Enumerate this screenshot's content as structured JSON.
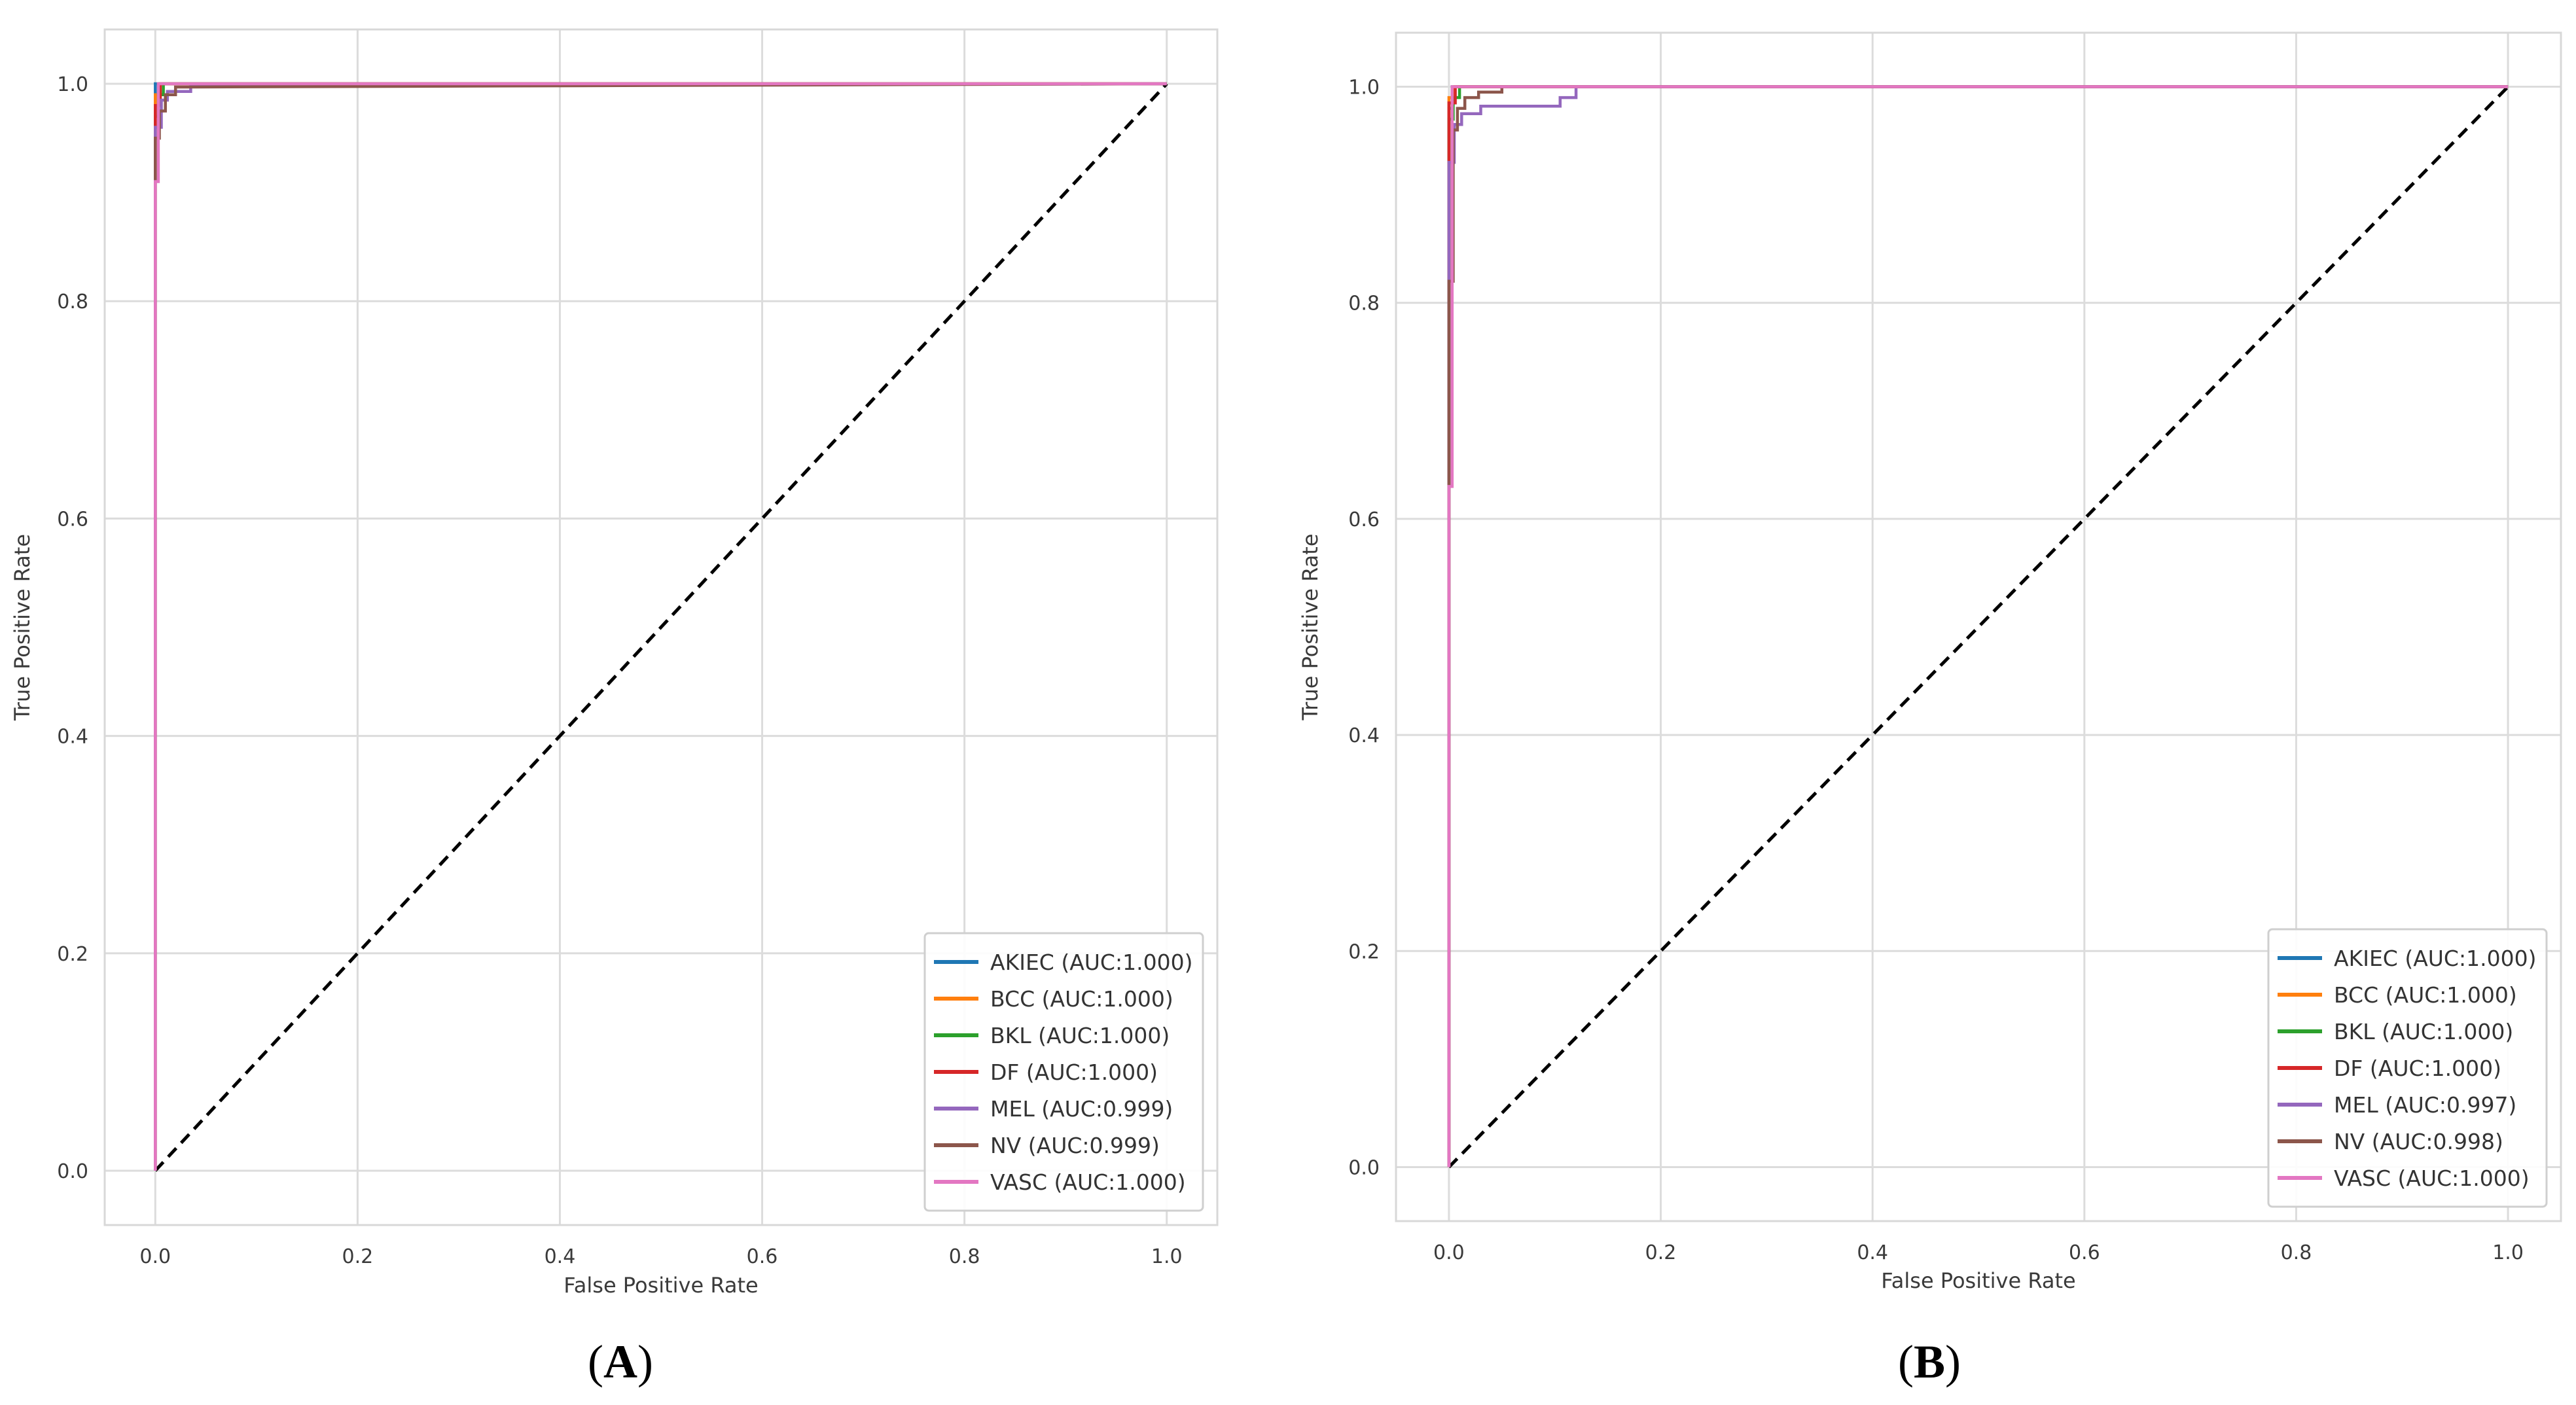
{
  "figure": {
    "panels": [
      {
        "label_open": "(",
        "label_letter": "A",
        "label_close": ")"
      },
      {
        "label_open": "(",
        "label_letter": "B",
        "label_close": ")"
      }
    ]
  },
  "chart_data": [
    {
      "type": "line",
      "title": "",
      "xlabel": "False Positive Rate",
      "ylabel": "True Positive Rate",
      "xlim": [
        -0.05,
        1.05
      ],
      "ylim": [
        -0.05,
        1.05
      ],
      "xticks": [
        "0.0",
        "0.2",
        "0.4",
        "0.6",
        "0.8",
        "1.0"
      ],
      "yticks": [
        "0.0",
        "0.2",
        "0.4",
        "0.6",
        "0.8",
        "1.0"
      ],
      "grid": true,
      "legend_position": "lower-right",
      "baseline": {
        "name": "chance",
        "color": "#000000",
        "style": "dashed",
        "x": [
          0,
          1
        ],
        "y": [
          0,
          1
        ]
      },
      "series": [
        {
          "name": "AKIEC",
          "legend": "AKIEC (AUC:1.000)",
          "color": "#1f77b4",
          "x": [
            0,
            0,
            1
          ],
          "y": [
            0,
            1.0,
            1.0
          ]
        },
        {
          "name": "BCC",
          "legend": "BCC (AUC:1.000)",
          "color": "#ff7f0e",
          "x": [
            0,
            0,
            0.004,
            0.004,
            1
          ],
          "y": [
            0,
            0.99,
            0.99,
            1.0,
            1.0
          ]
        },
        {
          "name": "BKL",
          "legend": "BKL (AUC:1.000)",
          "color": "#2ca02c",
          "x": [
            0,
            0,
            0.003,
            0.003,
            0.008,
            0.008,
            1
          ],
          "y": [
            0,
            0.97,
            0.97,
            0.99,
            0.99,
            1.0,
            1.0
          ]
        },
        {
          "name": "DF",
          "legend": "DF (AUC:1.000)",
          "color": "#d62728",
          "x": [
            0,
            0,
            0.005,
            0.005,
            1
          ],
          "y": [
            0,
            0.98,
            0.98,
            1.0,
            1.0
          ]
        },
        {
          "name": "MEL",
          "legend": "MEL (AUC:0.999)",
          "color": "#9467bd",
          "x": [
            0,
            0,
            0.006,
            0.006,
            0.012,
            0.012,
            0.035,
            0.035,
            0.09,
            1
          ],
          "y": [
            0,
            0.96,
            0.96,
            0.985,
            0.985,
            0.993,
            0.993,
            0.998,
            0.998,
            1.0
          ]
        },
        {
          "name": "NV",
          "legend": "NV (AUC:0.999)",
          "color": "#8c564b",
          "x": [
            0,
            0,
            0.004,
            0.004,
            0.01,
            0.01,
            0.02,
            0.02,
            0.03,
            1
          ],
          "y": [
            0,
            0.95,
            0.95,
            0.975,
            0.975,
            0.99,
            0.99,
            0.997,
            0.997,
            1.0
          ]
        },
        {
          "name": "VASC",
          "legend": "VASC (AUC:1.000)",
          "color": "#e377c2",
          "x": [
            0,
            0,
            0.003,
            0.003,
            1
          ],
          "y": [
            0,
            0.91,
            0.91,
            1.0,
            1.0
          ]
        }
      ]
    },
    {
      "type": "line",
      "title": "",
      "xlabel": "False Positive Rate",
      "ylabel": "True Positive Rate",
      "xlim": [
        -0.05,
        1.05
      ],
      "ylim": [
        -0.05,
        1.05
      ],
      "xticks": [
        "0.0",
        "0.2",
        "0.4",
        "0.6",
        "0.8",
        "1.0"
      ],
      "yticks": [
        "0.0",
        "0.2",
        "0.4",
        "0.6",
        "0.8",
        "1.0"
      ],
      "grid": true,
      "legend_position": "lower-right",
      "baseline": {
        "name": "chance",
        "color": "#000000",
        "style": "dashed",
        "x": [
          0,
          1
        ],
        "y": [
          0,
          1
        ]
      },
      "series": [
        {
          "name": "AKIEC",
          "legend": "AKIEC (AUC:1.000)",
          "color": "#1f77b4",
          "x": [
            0,
            0,
            0.003,
            0.003,
            1
          ],
          "y": [
            0,
            0.98,
            0.98,
            1.0,
            1.0
          ]
        },
        {
          "name": "BCC",
          "legend": "BCC (AUC:1.000)",
          "color": "#ff7f0e",
          "x": [
            0,
            0,
            0.005,
            0.005,
            1
          ],
          "y": [
            0,
            0.99,
            0.99,
            1.0,
            1.0
          ]
        },
        {
          "name": "BKL",
          "legend": "BKL (AUC:1.000)",
          "color": "#2ca02c",
          "x": [
            0,
            0,
            0.004,
            0.004,
            0.01,
            0.01,
            1
          ],
          "y": [
            0,
            0.97,
            0.97,
            0.99,
            0.99,
            1.0,
            1.0
          ]
        },
        {
          "name": "DF",
          "legend": "DF (AUC:1.000)",
          "color": "#d62728",
          "x": [
            0,
            0,
            0.006,
            0.006,
            1
          ],
          "y": [
            0,
            0.985,
            0.985,
            1.0,
            1.0
          ]
        },
        {
          "name": "MEL",
          "legend": "MEL (AUC:0.997)",
          "color": "#9467bd",
          "x": [
            0,
            0,
            0.005,
            0.005,
            0.012,
            0.012,
            0.03,
            0.03,
            0.105,
            0.105,
            0.12,
            0.12,
            1
          ],
          "y": [
            0,
            0.93,
            0.93,
            0.965,
            0.965,
            0.975,
            0.975,
            0.982,
            0.982,
            0.99,
            0.99,
            1.0,
            1.0
          ]
        },
        {
          "name": "NV",
          "legend": "NV (AUC:0.998)",
          "color": "#8c564b",
          "x": [
            0,
            0,
            0.004,
            0.004,
            0.008,
            0.008,
            0.015,
            0.015,
            0.028,
            0.028,
            0.05,
            0.05,
            1
          ],
          "y": [
            0,
            0.82,
            0.82,
            0.96,
            0.96,
            0.98,
            0.98,
            0.99,
            0.99,
            0.995,
            0.995,
            1.0,
            1.0
          ]
        },
        {
          "name": "VASC",
          "legend": "VASC (AUC:1.000)",
          "color": "#e377c2",
          "x": [
            0,
            0,
            0.003,
            0.003,
            1
          ],
          "y": [
            0,
            0.63,
            0.63,
            1.0,
            1.0
          ]
        }
      ]
    }
  ]
}
